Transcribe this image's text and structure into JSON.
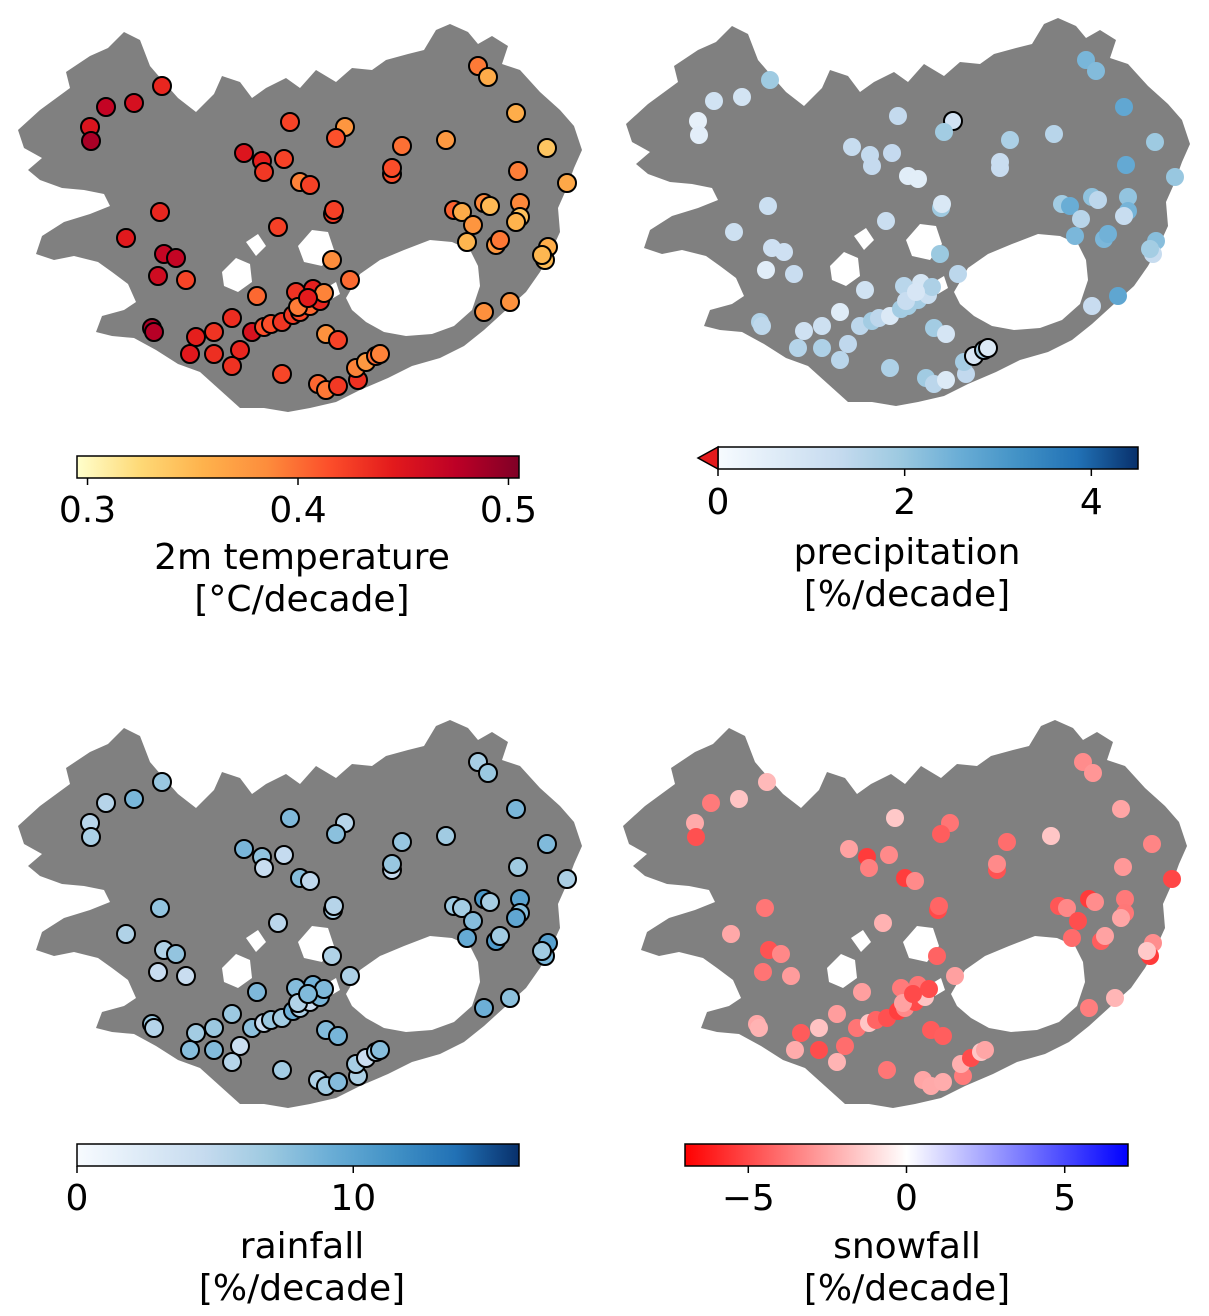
{
  "panels": [
    {
      "id": "temperature",
      "variable": "2m temperature",
      "unit": "[°C/decade]",
      "colormap": [
        "#ffffcc",
        "#fed976",
        "#feb24c",
        "#fd8d3c",
        "#fc4e2a",
        "#e31a1c",
        "#bd0026",
        "#800026"
      ],
      "range": [
        0.295,
        0.505
      ],
      "ticks": [
        {
          "value": 0.3,
          "label": "0.3"
        },
        {
          "value": 0.4,
          "label": "0.4"
        },
        {
          "value": 0.5,
          "label": "0.5"
        }
      ],
      "extend_min": false,
      "dot_value_shown": "trend per station",
      "significant_outline": true
    },
    {
      "id": "precipitation",
      "variable": "precipitation",
      "unit": "[%/decade]",
      "colormap": [
        "#f7fbff",
        "#deebf7",
        "#c6dbef",
        "#9ecae1",
        "#6baed6",
        "#4292c6",
        "#2171b5",
        "#08306b"
      ],
      "range": [
        0,
        4.5
      ],
      "ticks": [
        {
          "value": 0,
          "label": "0"
        },
        {
          "value": 2,
          "label": "2"
        },
        {
          "value": 4,
          "label": "4"
        }
      ],
      "extend_min": true,
      "extend_color": "#e31a1c"
    },
    {
      "id": "rainfall",
      "variable": "rainfall",
      "unit": "[%/decade]",
      "colormap": [
        "#f7fbff",
        "#deebf7",
        "#c6dbef",
        "#9ecae1",
        "#6baed6",
        "#4292c6",
        "#2171b5",
        "#08306b"
      ],
      "range": [
        0,
        16
      ],
      "ticks": [
        {
          "value": 0,
          "label": "0"
        },
        {
          "value": 10,
          "label": "10"
        }
      ],
      "extend_min": false
    },
    {
      "id": "snowfall",
      "variable": "snowfall",
      "unit": "[%/decade]",
      "colormap": [
        "#ff0000",
        "#ff8080",
        "#ffffff",
        "#8080ff",
        "#0000ff"
      ],
      "range": [
        -7,
        7
      ],
      "ticks": [
        {
          "value": -5,
          "label": "−5"
        },
        {
          "value": 0,
          "label": "0"
        },
        {
          "value": 5,
          "label": "5"
        }
      ],
      "extend_min": false
    }
  ],
  "colors": {
    "land": "#808080",
    "sea": "#ffffff",
    "glacier": "#ffffff",
    "outline": "#000000"
  }
}
